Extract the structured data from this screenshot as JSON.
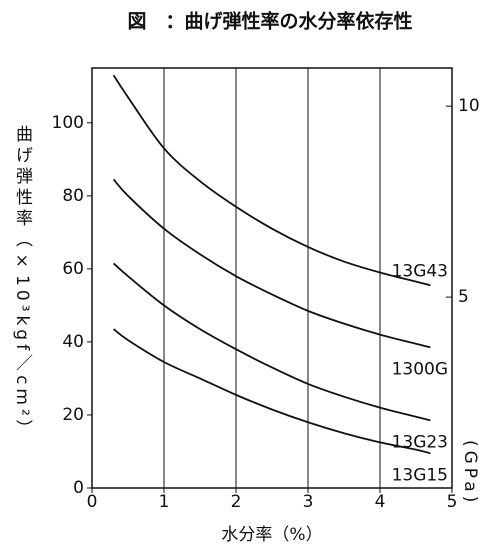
{
  "chart_data": {
    "type": "line",
    "title": "図　：曲げ弾性率の水分率依存性",
    "x_label": "水分率（%）",
    "y_label": "曲げ弾性率（×10³kgf／cm²）",
    "y2_label": "(GPa)",
    "x": [
      0.3,
      0.5,
      1,
      1.5,
      2,
      2.5,
      3,
      3.5,
      4,
      4.5,
      4.7
    ],
    "series": [
      {
        "name": "13G43",
        "color": "#111111",
        "values": [
          113,
          107,
          93,
          84,
          77,
          71,
          66,
          62,
          59,
          56.5,
          55.5
        ]
      },
      {
        "name": "1300G",
        "color": "#111111",
        "values": [
          84.5,
          80,
          71,
          64,
          58,
          53,
          48.5,
          45,
          42,
          39.5,
          38.5
        ]
      },
      {
        "name": "13G23",
        "color": "#111111",
        "values": [
          61.5,
          58,
          50,
          43.5,
          38,
          33,
          28.5,
          25,
          22,
          19.5,
          18.5
        ]
      },
      {
        "name": "13G15",
        "color": "#111111",
        "values": [
          43.5,
          40.5,
          34.5,
          30,
          25.5,
          21.5,
          18,
          15,
          12.5,
          10.5,
          9.5
        ]
      }
    ],
    "xlim": [
      0,
      5
    ],
    "xticks": [
      0,
      1,
      2,
      3,
      4,
      5
    ],
    "ylim": [
      0,
      115
    ],
    "yticks": [
      0,
      20,
      40,
      60,
      80,
      100
    ],
    "y2lim": [
      0,
      11
    ],
    "y2ticks": [
      5,
      10
    ],
    "grid": "x"
  }
}
